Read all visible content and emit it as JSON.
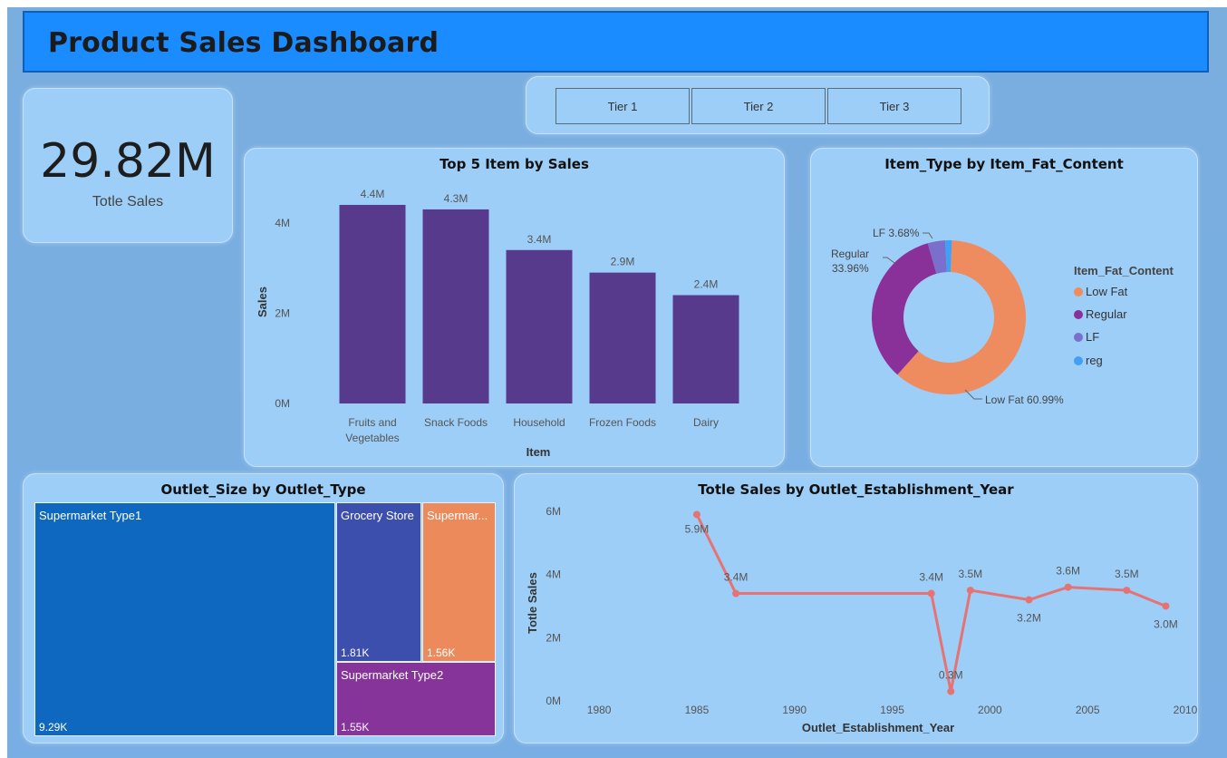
{
  "header": {
    "title": "Product Sales Dashboard"
  },
  "kpi": {
    "value": "29.82M",
    "label": "Totle Sales"
  },
  "slicer": {
    "buttons": [
      "Tier 1",
      "Tier 2",
      "Tier 3"
    ]
  },
  "bar_panel": {
    "title": "Top 5 Item by Sales"
  },
  "donut_panel": {
    "title": "Item_Type by Item_Fat_Content",
    "legend_title": "Item_Fat_Content",
    "legend": [
      {
        "label": "Low Fat",
        "color": "#ee8c5f"
      },
      {
        "label": "Regular",
        "color": "#8a3099"
      },
      {
        "label": "LF",
        "color": "#7a6fca"
      },
      {
        "label": "reg",
        "color": "#3fa0f5"
      }
    ],
    "annotations": {
      "lf": "LF 3.68%",
      "regular_1": "Regular",
      "regular_2": "33.96%",
      "lowfat": "Low Fat 60.99%"
    }
  },
  "treemap_panel": {
    "title": "Outlet_Size by Outlet_Type",
    "cells": [
      {
        "label": "Supermarket Type1",
        "value": "9.29K",
        "color": "#0f68c0"
      },
      {
        "label": "Grocery Store",
        "value": "1.81K",
        "color": "#3d4fad"
      },
      {
        "label": "Supermar...",
        "value": "1.56K",
        "color": "#ec8a5c"
      },
      {
        "label": "Supermarket Type2",
        "value": "1.55K",
        "color": "#863499"
      }
    ]
  },
  "line_panel": {
    "title": "Totle Sales by Outlet_Establishment_Year"
  },
  "chart_data": [
    {
      "type": "bar",
      "title": "Top 5 Item by Sales",
      "xlabel": "Item",
      "ylabel": "Sales",
      "categories": [
        "Fruits and Vegetables",
        "Snack Foods",
        "Household",
        "Frozen Foods",
        "Dairy"
      ],
      "category_lines": [
        [
          "Fruits and",
          "Vegetables"
        ],
        [
          "Snack Foods"
        ],
        [
          "Household"
        ],
        [
          "Frozen Foods"
        ],
        [
          "Dairy"
        ]
      ],
      "values": [
        4.4,
        4.3,
        3.4,
        2.9,
        2.4
      ],
      "data_labels": [
        "4.4M",
        "4.3M",
        "3.4M",
        "2.9M",
        "2.4M"
      ],
      "ylim": [
        0,
        4.5
      ],
      "yticks": [
        0,
        2,
        4
      ],
      "ytick_labels": [
        "0M",
        "2M",
        "4M"
      ],
      "color": "#583a8c"
    },
    {
      "type": "pie",
      "title": "Item_Type by Item_Fat_Content",
      "donut": true,
      "labels": [
        "Low Fat",
        "Regular",
        "LF",
        "reg"
      ],
      "values": [
        60.99,
        33.96,
        3.68,
        1.37
      ],
      "colors": [
        "#ee8c5f",
        "#8a3099",
        "#7a6fca",
        "#3fa0f5"
      ]
    },
    {
      "type": "line",
      "title": "Totle Sales by Outlet_Establishment_Year",
      "xlabel": "Outlet_Establishment_Year",
      "ylabel": "Totle Sales",
      "x": [
        1985,
        1987,
        1997,
        1998,
        1999,
        2002,
        2004,
        2007,
        2009
      ],
      "y": [
        5.9,
        3.4,
        3.4,
        0.3,
        3.5,
        3.2,
        3.6,
        3.5,
        3.0
      ],
      "data_labels": [
        "5.9M",
        "3.4M",
        "3.4M",
        "0.3M",
        "3.5M",
        "3.2M",
        "3.6M",
        "3.5M",
        "3.0M"
      ],
      "xlim": [
        1978,
        2010
      ],
      "ylim": [
        0,
        6.2
      ],
      "xticks": [
        1980,
        1985,
        1990,
        1995,
        2000,
        2005,
        2010
      ],
      "yticks": [
        0,
        2,
        4,
        6
      ],
      "ytick_labels": [
        "0M",
        "2M",
        "4M",
        "6M"
      ],
      "color": "#e57373"
    }
  ]
}
